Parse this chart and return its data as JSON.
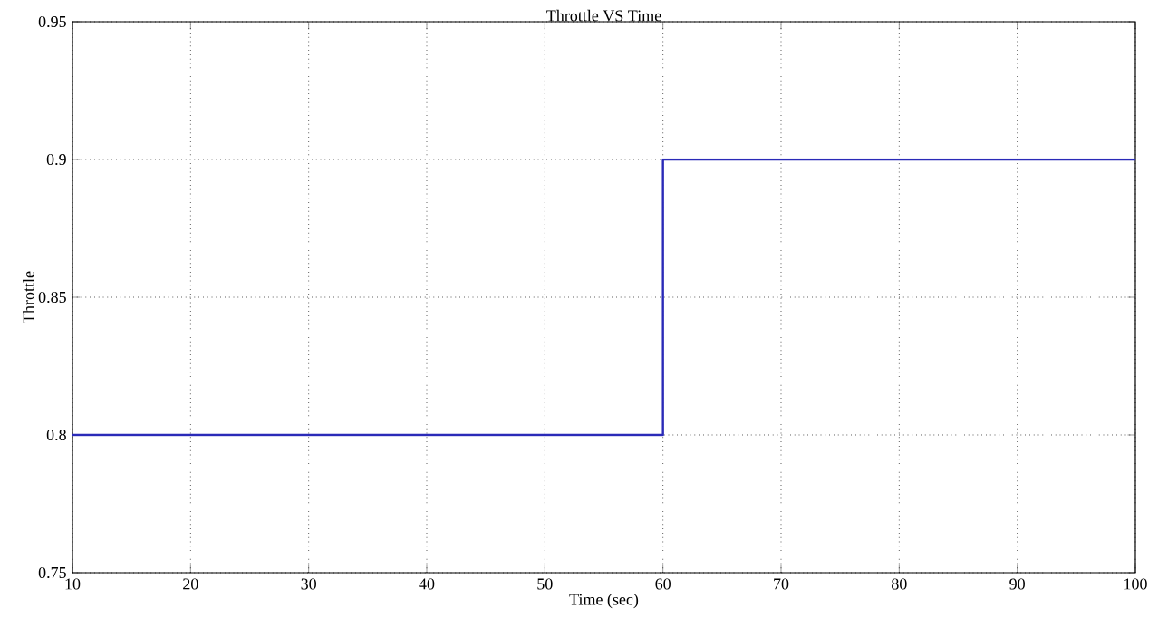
{
  "chart_data": {
    "type": "line",
    "title": "Throttle VS Time",
    "xlabel": "Time (sec)",
    "ylabel": "Throttle",
    "series": [
      {
        "color": "#2a2ab8",
        "x": [
          10,
          60,
          60,
          100
        ],
        "values": [
          0.8,
          0.8,
          0.9,
          0.9
        ]
      }
    ],
    "xlim": [
      10,
      100
    ],
    "ylim": [
      0.75,
      0.95
    ],
    "xticks": [
      10,
      20,
      30,
      40,
      50,
      60,
      70,
      80,
      90,
      100
    ],
    "yticks": [
      0.75,
      0.8,
      0.85,
      0.9,
      0.95
    ],
    "grid": true
  }
}
